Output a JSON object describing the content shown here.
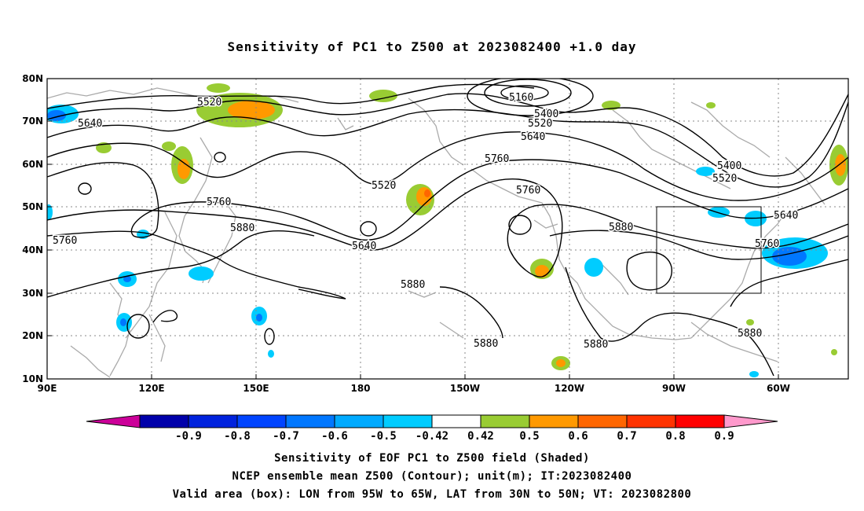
{
  "title": "Sensitivity of PC1 to Z500 at 2023082400 +1.0 day",
  "lat_labels": [
    "80N",
    "70N",
    "60N",
    "50N",
    "40N",
    "30N",
    "20N",
    "10N"
  ],
  "lon_labels": [
    "90E",
    "120E",
    "150E",
    "180",
    "150W",
    "120W",
    "90W",
    "60W"
  ],
  "contour_labels": [
    {
      "text": "5160"
    },
    {
      "text": "5400"
    },
    {
      "text": "5520"
    },
    {
      "text": "5640"
    },
    {
      "text": "5520"
    },
    {
      "text": "5640"
    },
    {
      "text": "5760"
    },
    {
      "text": "5760"
    },
    {
      "text": "5520"
    },
    {
      "text": "5640"
    },
    {
      "text": "5760"
    },
    {
      "text": "5880"
    },
    {
      "text": "5760"
    },
    {
      "text": "5880"
    },
    {
      "text": "5880"
    },
    {
      "text": "5880"
    },
    {
      "text": "5880"
    },
    {
      "text": "5400"
    },
    {
      "text": "5520"
    },
    {
      "text": "5640"
    },
    {
      "text": "5760"
    },
    {
      "text": "5880"
    }
  ],
  "colorbar": {
    "labels": [
      "-0.9",
      "-0.8",
      "-0.7",
      "-0.6",
      "-0.5",
      "-0.42",
      "0.42",
      "0.5",
      "0.6",
      "0.7",
      "0.8",
      "0.9"
    ],
    "colors": [
      "#cc0099",
      "#0000aa",
      "#0022dd",
      "#0044ff",
      "#0077ff",
      "#00aaff",
      "#00ccff",
      "#ffffff",
      "#99cc33",
      "#ff9900",
      "#ff6600",
      "#ff3300",
      "#ff0000",
      "#ff99cc"
    ]
  },
  "captions": [
    "Sensitivity of EOF PC1 to Z500 field (Shaded)",
    "NCEP ensemble mean Z500 (Contour); unit(m); IT:2023082400",
    "Valid area (box): LON from 95W to 65W, LAT from 30N to 50N; VT: 2023082800"
  ],
  "valid_box": {
    "lon_from": "95W",
    "lon_to": "65W",
    "lat_from": "30N",
    "lat_to": "50N"
  }
}
